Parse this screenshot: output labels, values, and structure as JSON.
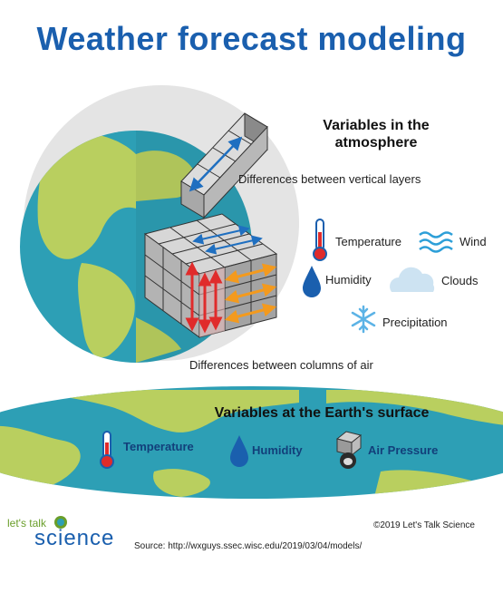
{
  "title": "Weather forecast modeling",
  "atmosphere": {
    "heading": "Variables in the atmosphere",
    "vertical_layers_label": "Differences between vertical layers",
    "columns_label": "Differences between columns of air",
    "variables": [
      {
        "label": "Temperature",
        "icon": "thermometer-icon"
      },
      {
        "label": "Wind",
        "icon": "wind-icon"
      },
      {
        "label": "Humidity",
        "icon": "water-drop-icon"
      },
      {
        "label": "Clouds",
        "icon": "cloud-icon"
      },
      {
        "label": "Precipitation",
        "icon": "snowflake-icon"
      }
    ]
  },
  "surface": {
    "heading": "Variables at the Earth's surface",
    "variables": [
      {
        "label": "Temperature",
        "icon": "thermometer-icon"
      },
      {
        "label": "Humidity",
        "icon": "water-drop-icon"
      },
      {
        "label": "Air Pressure",
        "icon": "weight-icon"
      }
    ]
  },
  "footer": {
    "logo_top": "let's talk",
    "logo_bottom": "science",
    "copyright": "©2019 Let's Talk Science",
    "source": "Source: http://wxguys.ssec.wisc.edu/2019/03/04/models/"
  },
  "colors": {
    "title": "#1a5fae",
    "ocean": "#2d9fb5",
    "land": "#b9cf5f",
    "halo": "#e4e4e4",
    "cube": "#c9c9c9",
    "arrow_red": "#e02b2b",
    "arrow_orange": "#f39a1e",
    "arrow_blue": "#1f6fc0"
  }
}
